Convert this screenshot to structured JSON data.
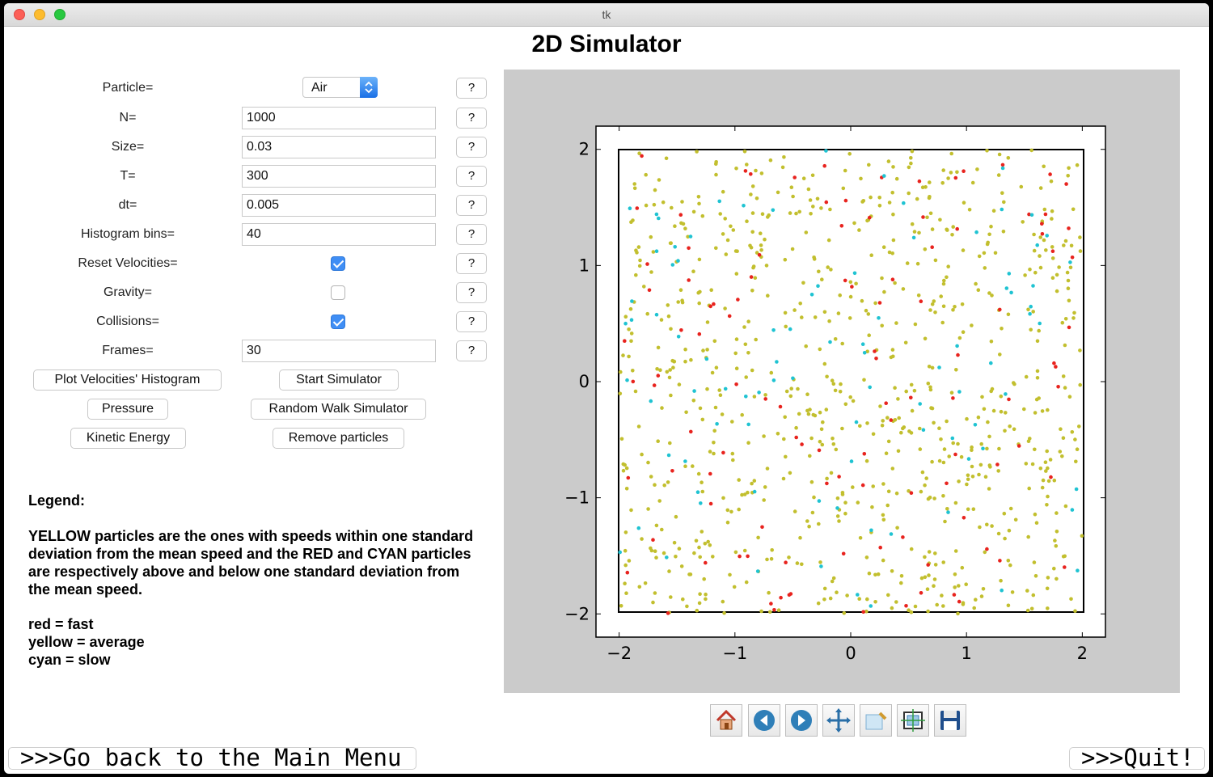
{
  "window": {
    "title": "tk"
  },
  "app_title": "2D Simulator",
  "form": {
    "particle_label": "Particle=",
    "particle_value": "Air",
    "n_label": "N=",
    "n_value": "1000",
    "size_label": "Size=",
    "size_value": "0.03",
    "t_label": "T=",
    "t_value": "300",
    "dt_label": "dt=",
    "dt_value": "0.005",
    "bins_label": "Histogram bins=",
    "bins_value": "40",
    "reset_label": "Reset Velocities=",
    "reset_checked": true,
    "gravity_label": "Gravity=",
    "gravity_checked": false,
    "collisions_label": "Collisions=",
    "collisions_checked": true,
    "frames_label": "Frames=",
    "frames_value": "30",
    "help": "?"
  },
  "buttons": {
    "plot_hist": "Plot Velocities' Histogram",
    "start": "Start Simulator",
    "pressure": "Pressure",
    "random_walk": "Random Walk Simulator",
    "kinetic": "Kinetic Energy",
    "remove": "Remove particles"
  },
  "legend": {
    "heading": "Legend:",
    "para1": "YELLOW particles are the ones with speeds within one standard",
    "para2": "deviation from the mean speed and the RED and CYAN particles",
    "para3": "are respectively above and below one standard deviation from",
    "para4": "the mean speed.",
    "red": "red = fast",
    "yellow": "yellow = average",
    "cyan": "cyan = slow"
  },
  "footer": {
    "back": ">>>Go back to the Main Menu",
    "quit": ">>>Quit!"
  },
  "toolbar": [
    {
      "name": "home-icon"
    },
    {
      "name": "back-arrow-icon"
    },
    {
      "name": "forward-arrow-icon"
    },
    {
      "name": "pan-icon"
    },
    {
      "name": "zoom-icon"
    },
    {
      "name": "configure-subplots-icon"
    },
    {
      "name": "save-icon"
    }
  ],
  "colors": {
    "yellow": "#c2bf2e",
    "red": "#e8231e",
    "cyan": "#1fc3d2",
    "panel": "#cbcbcb"
  },
  "chart_data": {
    "type": "scatter",
    "title": "",
    "xlabel": "",
    "ylabel": "",
    "xlim": [
      -2.2,
      2.2
    ],
    "ylim": [
      -2.2,
      2.2
    ],
    "box": [
      -2,
      2
    ],
    "xticks": [
      "−2",
      "−1",
      "0",
      "1",
      "2"
    ],
    "yticks": [
      "2",
      "1",
      "0",
      "−1",
      "−2"
    ],
    "grid": false,
    "series": [
      {
        "color": "#c2bf2e",
        "count": 800
      },
      {
        "color": "#e8231e",
        "count": 110
      },
      {
        "color": "#1fc3d2",
        "count": 90
      }
    ]
  }
}
